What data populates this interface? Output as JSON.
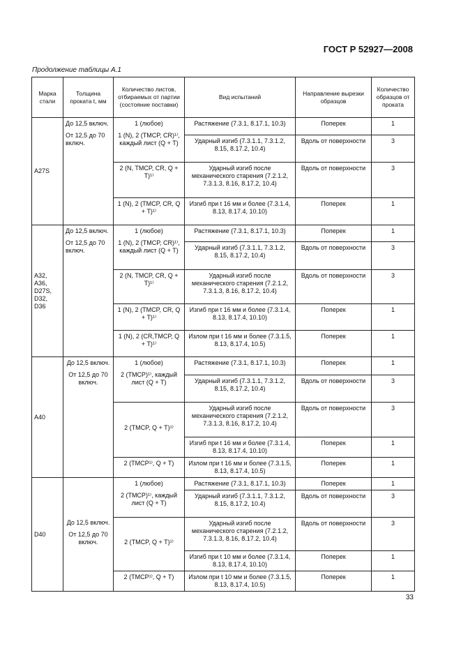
{
  "header": "ГОСТ Р 52927—2008",
  "caption": "Продолжение таблицы А.1",
  "page_number": "33",
  "columns": [
    "Марка стали",
    "Толщина проката t, мм",
    "Количество листов, отбираемых от партии (состояние поставки)",
    "Вид испытаний",
    "Направление вырезки образцов",
    "Количество образцов от проката"
  ],
  "groups": [
    {
      "grade": "A27S",
      "thickness": [
        "До 12,5 включ.",
        "От 12,5 до 70 включ."
      ],
      "qty": [
        "1 (любое)",
        "1 (N), 2 (TMCP, CR)¹⁾, каждый лист (Q + T)",
        "2 (N, TMCP, CR, Q + T)¹⁾",
        "1 (N), 2 (TMCP, CR, Q + T)¹⁾"
      ],
      "rows": [
        {
          "test": "Растяжение (7.3.1, 8.17.1, 10.3)",
          "dir": "Поперек",
          "n": "1"
        },
        {
          "test": "Ударный изгиб (7.3.1.1, 7.3.1.2, 8.15, 8.17.2, 10.4)",
          "dir": "Вдоль от поверхности",
          "n": "3"
        },
        {
          "test": "Ударный изгиб после механического старения (7.2.1.2, 7.3.1.3, 8.16, 8.17.2, 10.4)",
          "dir": "Вдоль от поверхности",
          "n": "3"
        },
        {
          "test": "Изгиб при t 16 мм и более (7.3.1.4, 8.13, 8.17.4, 10.10)",
          "dir": "Поперек",
          "n": "1"
        }
      ]
    },
    {
      "grade": "A32, A36, D27S, D32, D36",
      "thickness": [
        "До 12,5 включ.",
        "От 12,5 до 70 включ."
      ],
      "qty": [
        "1 (любое)",
        "1 (N), 2 (TMCP, CR)¹⁾, каждый лист (Q + T)",
        "2 (N, TMCP, CR, Q + T)¹⁾",
        "1 (N), 2 (TMCP, CR, Q + T)¹⁾",
        "1 (N), 2 (CR,TMCP, Q + T)¹⁾"
      ],
      "rows": [
        {
          "test": "Растяжение (7.3.1, 8.17.1, 10.3)",
          "dir": "Поперек",
          "n": "1"
        },
        {
          "test": "Ударный изгиб (7.3.1.1, 7.3.1.2, 8.15, 8.17.2, 10.4)",
          "dir": "Вдоль от поверхности",
          "n": "3"
        },
        {
          "test": "Ударный изгиб после механического старения (7.2.1.2, 7.3.1.3, 8.16, 8.17.2, 10.4)",
          "dir": "Вдоль от поверхности",
          "n": "3"
        },
        {
          "test": "Изгиб при t 16 мм и более (7.3.1.4, 8.13, 8.17.4, 10.10)",
          "dir": "Поперек",
          "n": "1"
        },
        {
          "test": "Излом при t 16 мм и более (7.3.1.5, 8.13, 8.17.4, 10.5)",
          "dir": "Поперек",
          "n": "1"
        }
      ]
    },
    {
      "grade": "A40",
      "thickness": [
        "До 12,5 включ.",
        "От 12,5 до 70 включ."
      ],
      "qty": [
        "1 (любое)",
        "2 (TMCP)¹⁾, каждый лист (Q + T)",
        "2 (TMCP, Q + T)¹⁾",
        "2 (TMCP¹⁾, Q + T)"
      ],
      "rows": [
        {
          "test": "Растяжение (7.3.1, 8.17.1, 10.3)",
          "dir": "Поперек",
          "n": "1"
        },
        {
          "test": "Ударный изгиб (7.3.1.1, 7.3.1.2, 8.15, 8.17.2, 10.4)",
          "dir": "Вдоль от поверхности",
          "n": "3"
        },
        {
          "test": "Ударный изгиб после механического старения (7.2.1.2, 7.3.1.3, 8.16, 8.17.2, 10.4)",
          "dir": "Вдоль от поверхности",
          "n": "3"
        },
        {
          "test": "Изгиб при t 16 мм и более (7.3.1.4, 8.13, 8.17.4, 10.10)",
          "dir": "Поперек",
          "n": "1"
        },
        {
          "test": "Излом при t 16 мм и более (7.3.1.5, 8.13, 8.17.4, 10.5)",
          "dir": "Поперек",
          "n": "1"
        }
      ]
    },
    {
      "grade": "D40",
      "thickness": [
        "До 12,5 включ.",
        "От 12,5 до 70 включ."
      ],
      "qty": [
        "1 (любое)",
        "2 (TMCP)¹⁾, каждый лист (Q + T)",
        "2 (TMCP, Q + T)¹⁾",
        "2 (TMCP¹⁾, Q + T)"
      ],
      "rows": [
        {
          "test": "Растяжение (7.3.1, 8.17.1, 10.3)",
          "dir": "Поперек",
          "n": "1"
        },
        {
          "test": "Ударный изгиб (7.3.1.1, 7.3.1.2, 8.15, 8.17.2, 10.4)",
          "dir": "Вдоль от поверхности",
          "n": "3"
        },
        {
          "test": "Ударный изгиб после механического старения (7.2.1.2, 7.3.1.3, 8.16, 8.17.2, 10.4)",
          "dir": "Вдоль от поверхности",
          "n": "3"
        },
        {
          "test": "Изгиб при t 10 мм и более (7.3.1.4, 8.13, 8.17.4, 10.10)",
          "dir": "Поперек",
          "n": "1"
        },
        {
          "test": "Излом при t 10 мм и более (7.3.1.5, 8.13, 8.17.4, 10.5)",
          "dir": "Поперек",
          "n": "1"
        }
      ]
    }
  ]
}
